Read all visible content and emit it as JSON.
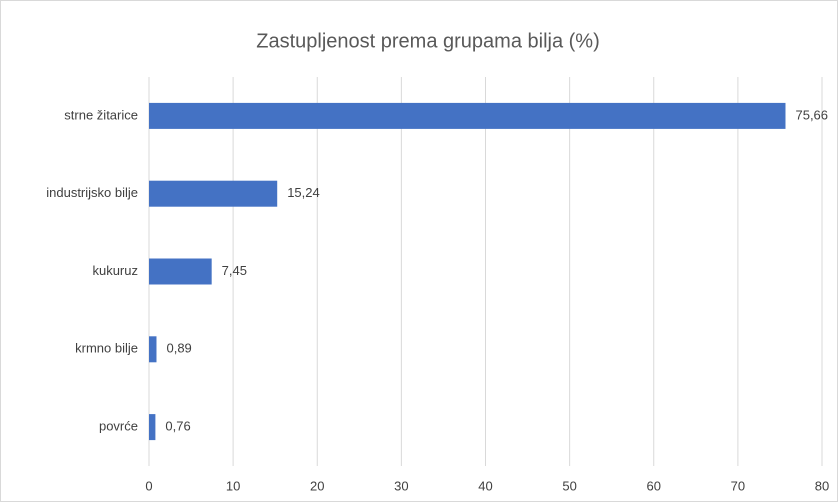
{
  "chart_data": {
    "type": "bar",
    "orientation": "horizontal",
    "title": "Zastupljenost prema grupama bilja (%)",
    "categories": [
      "strne žitarice",
      "industrijsko bilje",
      "kukuruz",
      "krmno bilje",
      "povrće"
    ],
    "values": [
      75.66,
      15.24,
      7.45,
      0.89,
      0.76
    ],
    "value_labels": [
      "75,66",
      "15,24",
      "7,45",
      "0,89",
      "0,76"
    ],
    "color": "#4472c4",
    "xlim": [
      0,
      80
    ],
    "xticks": [
      0,
      10,
      20,
      30,
      40,
      50,
      60,
      70,
      80
    ],
    "grid": true
  }
}
